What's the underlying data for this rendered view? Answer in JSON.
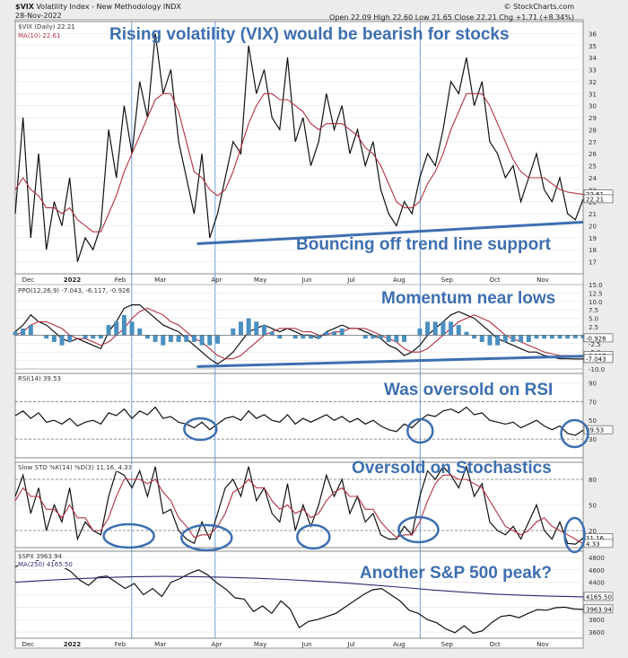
{
  "header": {
    "symbol": "$VIX",
    "name": "Volatility Index - New Methodology INDX",
    "date": "28-Nov-2022",
    "watermark": "© StockCharts.com",
    "quote": "Open 22.09 High 22.60 Low 21.65 Close 22.21 Chg +1.71 (+8.34%)"
  },
  "panel_labels": {
    "vix": "$VIX (Daily) 22.21",
    "vix_ma": "MA(10) 22.61",
    "ppo": "PPO(12,26,9) -7.043, -6.117, -0.926",
    "rsi": "RSI(14) 39.53",
    "sto": "Slow STO %K(14) %D(3) 11.16, 4.33",
    "spx": "$SPX 3963.94",
    "spx_ma": "MA(250) 4165.50"
  },
  "annotations": {
    "vix_title": "Rising volatility (VIX) would be bearish for stocks",
    "trend": "Bouncing off trend line support",
    "momentum": "Momentum near lows",
    "rsi": "Was oversold on RSI",
    "sto": "Oversold on Stochastics",
    "spx": "Another S&P 500 peak?"
  },
  "colors": {
    "annotation": "#3d6fb0",
    "price_line": "#111111",
    "ma_line": "#b03040",
    "histogram": "#4a8fc0",
    "spx_ma": "#2a2a70",
    "vertical_lines": "#6a9ed8"
  },
  "chart_data": [
    {
      "panel": "vix",
      "type": "line",
      "x_labels": [
        "Dec",
        "2022",
        "Feb",
        "Mar",
        "Apr",
        "May",
        "Jun",
        "Jul",
        "Aug",
        "Sep",
        "Oct",
        "Nov"
      ],
      "y_ticks": [
        "17",
        "18",
        "19",
        "20",
        "21",
        "22",
        "23",
        "24",
        "25",
        "26",
        "27",
        "28",
        "29",
        "30",
        "31",
        "32",
        "33",
        "34",
        "35",
        "36"
      ],
      "ylim": [
        16,
        37
      ],
      "value_badges": [
        "22.61",
        "22.21"
      ],
      "series": [
        {
          "name": "$VIX (Daily) 22.21",
          "values": [
            21,
            29,
            19,
            26,
            18,
            22,
            20,
            24,
            17,
            19,
            18,
            20,
            28,
            24,
            30,
            26,
            32,
            29,
            36,
            31,
            33,
            27,
            24,
            21,
            26,
            19,
            21,
            24,
            27,
            26,
            35,
            31,
            33,
            29,
            28,
            34,
            27,
            29,
            25,
            27,
            31,
            28,
            30,
            26,
            28,
            25,
            27,
            23,
            21,
            20,
            22,
            21,
            24,
            26,
            25,
            28,
            32,
            31,
            34,
            30,
            32,
            27,
            26,
            24,
            25,
            22,
            24,
            26,
            23,
            22,
            24,
            21,
            20.5,
            22.21
          ]
        },
        {
          "name": "MA(10) 22.61",
          "values": [
            23,
            24,
            23,
            22.5,
            21.5,
            21.5,
            21,
            21.5,
            20.5,
            20,
            19.5,
            19.5,
            21,
            22.5,
            24.5,
            26,
            27.5,
            29,
            30.5,
            31,
            31,
            29.5,
            27,
            24.5,
            24,
            23,
            22.5,
            23,
            24.5,
            26.5,
            28.5,
            30,
            31,
            31,
            30.5,
            30.5,
            30,
            29.5,
            28.5,
            28,
            28.5,
            28.5,
            28.5,
            28,
            27.5,
            26.5,
            26,
            25,
            23.5,
            22,
            21.5,
            21.5,
            22,
            23.5,
            24.5,
            26,
            28,
            29.5,
            31,
            31,
            31,
            30,
            28.5,
            27,
            25.5,
            24.5,
            24,
            24,
            24,
            23.5,
            23,
            22.8,
            22.7,
            22.61
          ]
        }
      ],
      "trendline": [
        {
          "x": 0.32,
          "y": 18.5
        },
        {
          "x": 1.0,
          "y": 20.3
        }
      ]
    },
    {
      "panel": "ppo",
      "type": "line",
      "y_ticks": [
        "-10.0",
        "-7.5",
        "-5.0",
        "-2.5",
        "0.0",
        "2.5",
        "5.0",
        "7.5",
        "10.0",
        "12.5",
        "15.0"
      ],
      "ylim": [
        -10,
        15
      ],
      "value_badges": [
        "-0.926",
        "-6.117",
        "-7.043"
      ],
      "series": [
        {
          "name": "PPO",
          "values": [
            1,
            3,
            6,
            4,
            3,
            1,
            -1,
            -2,
            -1,
            -2,
            -3,
            -4,
            1,
            4,
            8,
            9,
            9,
            7,
            5,
            3,
            2,
            1,
            -1,
            -3,
            -5,
            -7,
            -8.5,
            -7,
            -5,
            -2,
            1,
            2,
            3,
            2,
            1,
            2,
            1,
            0,
            0,
            -1,
            1,
            2,
            3,
            2,
            2,
            1,
            0,
            -1,
            -3,
            -4,
            -6,
            -5,
            -3,
            0,
            2,
            4,
            6,
            7,
            6,
            5,
            3,
            1,
            -1,
            -2,
            -3,
            -4,
            -5,
            -5,
            -6,
            -6.5,
            -7,
            -7,
            -7.043,
            -7.043
          ]
        },
        {
          "name": "Signal",
          "values": [
            0,
            1,
            3,
            4,
            4,
            3,
            2,
            0,
            -1,
            -1,
            -2,
            -3,
            -2,
            0,
            2,
            5,
            7,
            8,
            7,
            6,
            4,
            3,
            1,
            -1,
            -2,
            -4,
            -6,
            -7,
            -7,
            -6,
            -4,
            -2,
            0,
            1,
            2,
            2,
            2,
            1,
            1,
            0,
            0,
            1,
            1,
            2,
            2,
            2,
            1,
            0,
            -1,
            -2,
            -4,
            -5,
            -5,
            -4,
            -2,
            0,
            2,
            4,
            5,
            6,
            5,
            4,
            2,
            0,
            -1,
            -2,
            -3,
            -4,
            -5,
            -5.5,
            -6,
            -6,
            -6.1,
            -6.117
          ]
        }
      ],
      "trendline": [
        {
          "x": 0.32,
          "y": -9.3
        },
        {
          "x": 1.0,
          "y": -6.2
        }
      ]
    },
    {
      "panel": "rsi",
      "type": "line",
      "y_ticks": [
        "30",
        "50",
        "70",
        "90"
      ],
      "ylim": [
        10,
        100
      ],
      "value_badges": [
        "39.53"
      ],
      "reference_lines": [
        30,
        70
      ],
      "series": [
        {
          "name": "RSI(14) 39.53",
          "values": [
            55,
            60,
            52,
            58,
            48,
            50,
            46,
            52,
            44,
            48,
            50,
            46,
            58,
            55,
            62,
            52,
            60,
            56,
            64,
            52,
            54,
            48,
            46,
            42,
            48,
            40,
            46,
            52,
            54,
            50,
            60,
            52,
            56,
            50,
            48,
            56,
            46,
            52,
            48,
            52,
            56,
            50,
            54,
            48,
            52,
            46,
            50,
            44,
            40,
            38,
            46,
            42,
            50,
            56,
            54,
            60,
            62,
            58,
            64,
            56,
            58,
            50,
            48,
            46,
            48,
            42,
            46,
            50,
            44,
            40,
            44,
            36,
            34,
            39.53
          ]
        }
      ]
    },
    {
      "panel": "sto",
      "type": "line",
      "y_ticks": [
        "20",
        "50",
        "80"
      ],
      "ylim": [
        0,
        100
      ],
      "value_badges": [
        "11.16",
        "4.33"
      ],
      "reference_lines": [
        20,
        80
      ],
      "series": [
        {
          "name": "%K(14)",
          "values": [
            60,
            85,
            40,
            70,
            20,
            50,
            30,
            70,
            10,
            30,
            20,
            15,
            60,
            90,
            85,
            70,
            90,
            60,
            95,
            40,
            45,
            20,
            10,
            5,
            30,
            10,
            40,
            70,
            80,
            60,
            95,
            55,
            70,
            40,
            30,
            75,
            20,
            50,
            25,
            50,
            85,
            60,
            80,
            40,
            60,
            30,
            40,
            15,
            10,
            10,
            25,
            15,
            60,
            90,
            80,
            95,
            85,
            70,
            95,
            60,
            75,
            30,
            20,
            15,
            25,
            10,
            30,
            50,
            20,
            10,
            30,
            5,
            4,
            11.16
          ]
        },
        {
          "name": "%D(3)",
          "values": [
            55,
            70,
            60,
            60,
            45,
            45,
            35,
            50,
            35,
            35,
            20,
            20,
            35,
            60,
            80,
            80,
            80,
            75,
            80,
            65,
            55,
            35,
            25,
            12,
            15,
            15,
            25,
            40,
            65,
            70,
            80,
            70,
            70,
            55,
            45,
            50,
            40,
            45,
            35,
            40,
            55,
            65,
            70,
            60,
            60,
            45,
            45,
            30,
            20,
            12,
            15,
            15,
            30,
            55,
            75,
            85,
            85,
            80,
            80,
            75,
            70,
            55,
            40,
            25,
            20,
            15,
            20,
            30,
            35,
            25,
            20,
            15,
            10,
            4.33
          ]
        }
      ]
    },
    {
      "panel": "spx",
      "type": "line",
      "x_labels": [
        "Dec",
        "2022",
        "Feb",
        "Mar",
        "Apr",
        "May",
        "Jun",
        "Jul",
        "Aug",
        "Sep",
        "Oct",
        "Nov"
      ],
      "y_ticks": [
        "3600",
        "3800",
        "4000",
        "4200",
        "4400",
        "4600",
        "4800"
      ],
      "ylim": [
        3500,
        4900
      ],
      "value_badges": [
        "4165.50",
        "3963.94"
      ],
      "series": [
        {
          "name": "$SPX 3963.94",
          "values": [
            4650,
            4700,
            4720,
            4790,
            4770,
            4660,
            4580,
            4440,
            4350,
            4480,
            4500,
            4400,
            4300,
            4380,
            4200,
            4300,
            4170,
            4400,
            4460,
            4540,
            4600,
            4520,
            4390,
            4290,
            4150,
            4130,
            3930,
            4020,
            3900,
            4100,
            3970,
            3670,
            3770,
            3800,
            3850,
            3900,
            4000,
            4100,
            4200,
            4280,
            4300,
            4200,
            4100,
            3950,
            3900,
            3800,
            3750,
            3650,
            3590,
            3700,
            3580,
            3620,
            3750,
            3850,
            3870,
            3830,
            3900,
            3960,
            3950,
            3990,
            4000,
            3970,
            3963.94
          ]
        },
        {
          "name": "MA(250) 4165.50",
          "values": [
            4400,
            4430,
            4455,
            4475,
            4490,
            4495,
            4490,
            4480,
            4465,
            4445,
            4420,
            4390,
            4355,
            4315,
            4275,
            4240,
            4210,
            4190,
            4175,
            4165.5
          ]
        }
      ]
    }
  ]
}
